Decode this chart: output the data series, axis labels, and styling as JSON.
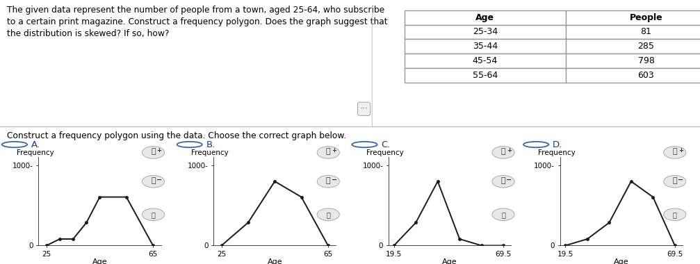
{
  "title_text": "The given data represent the number of people from a town, aged 25-64, who subscribe\nto a certain print magazine. Construct a frequency polygon. Does the graph suggest that\nthe distribution is skewed? If so, how?",
  "subtitle": "Construct a frequency polygon using the data. Choose the correct graph below.",
  "table_headers": [
    "Age",
    "People"
  ],
  "table_data": [
    [
      "25-34",
      "81"
    ],
    [
      "35-44",
      "285"
    ],
    [
      "45-54",
      "798"
    ],
    [
      "55-64",
      "603"
    ]
  ],
  "ylabel": "Frequency",
  "xlabel": "Age",
  "ylim": [
    0,
    1100
  ],
  "chartA": {
    "x": [
      25,
      30,
      35,
      40,
      45,
      55,
      65
    ],
    "y": [
      0,
      81,
      81,
      285,
      603,
      603,
      0
    ],
    "xlim": [
      22,
      68
    ],
    "xticks": [
      25,
      65
    ],
    "label": "A."
  },
  "chartB": {
    "x": [
      25,
      35,
      45,
      55,
      65
    ],
    "y": [
      0,
      285,
      798,
      603,
      0
    ],
    "xlim": [
      22,
      68
    ],
    "xticks": [
      25,
      65
    ],
    "label": "B."
  },
  "chartC": {
    "x": [
      19.5,
      29.5,
      39.5,
      49.5,
      59.5,
      69.5
    ],
    "y": [
      0,
      285,
      798,
      81,
      0,
      0
    ],
    "xlim": [
      17,
      73
    ],
    "xticks": [
      19.5,
      69.5
    ],
    "label": "C."
  },
  "chartD": {
    "x": [
      19.5,
      29.5,
      39.5,
      49.5,
      59.5,
      69.5
    ],
    "y": [
      0,
      81,
      285,
      798,
      603,
      0
    ],
    "xlim": [
      17,
      73
    ],
    "xticks": [
      19.5,
      69.5
    ],
    "label": "D."
  },
  "line_color": "#1a1a1a",
  "line_width": 1.4,
  "marker": "o",
  "marker_size": 2.5,
  "bg_color": "#ffffff",
  "text_color": "#000000",
  "option_color": "#1a3a8a",
  "radio_color": "#3a6aaa",
  "separator_color": "#bbbbbb",
  "icon_bg": "#e8e8e8",
  "icon_edge": "#aaaaaa"
}
